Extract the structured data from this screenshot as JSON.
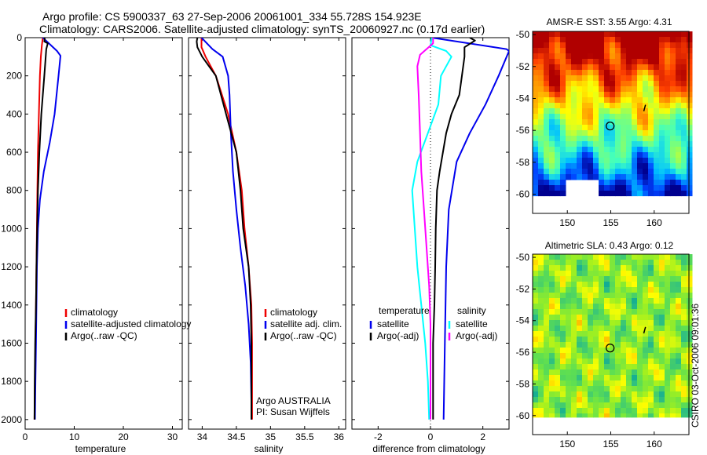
{
  "header": {
    "title_line1": "Argo profile: CS 5900337_63 27-Sep-2006 20061001_334 55.728S 154.923E",
    "title_line2": "Climatology: CARS2006. Satellite-adjusted climatology: synTS_20060927.nc (0.17d earlier)"
  },
  "credit": "CSIRO 03-Oct-2006 09:01:36",
  "chart_data": [
    {
      "id": "temperature",
      "type": "line",
      "xlabel": "temperature",
      "ylabel": "",
      "xlim": [
        0,
        32
      ],
      "ylim": [
        2050,
        0
      ],
      "y_reversed": true,
      "xticks": [
        "0",
        "10",
        "20",
        "30"
      ],
      "yticks": [
        "0",
        "200",
        "400",
        "600",
        "800",
        "1000",
        "1200",
        "1400",
        "1600",
        "1800",
        "2000"
      ],
      "legend": [
        "climatology",
        "satellite-adjusted climatology",
        "Argo(..raw -QC)"
      ],
      "legend_colors": [
        "#ee0000",
        "#0000ee",
        "#000000"
      ],
      "series": [
        {
          "name": "climatology",
          "color": "#ee0000",
          "points": [
            [
              3.6,
              0
            ],
            [
              3.4,
              40
            ],
            [
              3.2,
              100
            ],
            [
              3.0,
              200
            ],
            [
              2.8,
              400
            ],
            [
              2.6,
              600
            ],
            [
              2.5,
              800
            ],
            [
              2.4,
              1000
            ],
            [
              2.3,
              1200
            ],
            [
              2.2,
              1400
            ],
            [
              2.1,
              1600
            ],
            [
              2.0,
              1800
            ],
            [
              1.9,
              2000
            ]
          ]
        },
        {
          "name": "satellite-adjusted climatology",
          "color": "#0000ee",
          "points": [
            [
              3.6,
              0
            ],
            [
              6.5,
              70
            ],
            [
              7.2,
              95
            ],
            [
              6.8,
              200
            ],
            [
              6.0,
              400
            ],
            [
              5.0,
              550
            ],
            [
              3.8,
              700
            ],
            [
              3.0,
              850
            ],
            [
              2.6,
              1000
            ],
            [
              2.4,
              1200
            ],
            [
              2.3,
              1400
            ],
            [
              2.2,
              1600
            ],
            [
              2.1,
              1800
            ],
            [
              2.0,
              2000
            ]
          ]
        },
        {
          "name": "Argo(..raw -QC)",
          "color": "#000000",
          "points": [
            [
              4.0,
              0
            ],
            [
              3.9,
              20
            ],
            [
              4.6,
              30
            ],
            [
              4.3,
              60
            ],
            [
              3.9,
              200
            ],
            [
              3.3,
              400
            ],
            [
              2.9,
              600
            ],
            [
              2.6,
              800
            ],
            [
              2.45,
              1000
            ],
            [
              2.3,
              1200
            ],
            [
              2.2,
              1400
            ],
            [
              2.05,
              1600
            ],
            [
              1.95,
              1800
            ],
            [
              1.9,
              2000
            ]
          ]
        }
      ]
    },
    {
      "id": "salinity",
      "type": "line",
      "xlabel": "salinity",
      "ylabel": "",
      "xlim": [
        33.8,
        36.1
      ],
      "ylim": [
        2050,
        0
      ],
      "y_reversed": true,
      "xticks": [
        "34",
        "34.5",
        "35",
        "35.5",
        "36"
      ],
      "legend": [
        "climatology",
        "satellite adj. clim.",
        "Argo(..raw -QC)"
      ],
      "legend_colors": [
        "#ee0000",
        "#0000ee",
        "#000000"
      ],
      "annotation_lines": [
        "Argo AUSTRALIA",
        "PI: Susan Wijffels"
      ],
      "series": [
        {
          "name": "climatology",
          "color": "#ee0000",
          "points": [
            [
              33.99,
              0
            ],
            [
              33.99,
              50
            ],
            [
              34.05,
              100
            ],
            [
              34.2,
              200
            ],
            [
              34.38,
              400
            ],
            [
              34.5,
              600
            ],
            [
              34.58,
              800
            ],
            [
              34.62,
              1000
            ],
            [
              34.68,
              1200
            ],
            [
              34.72,
              1400
            ],
            [
              34.73,
              1600
            ],
            [
              34.73,
              1800
            ],
            [
              34.73,
              2000
            ]
          ]
        },
        {
          "name": "satellite adj. clim.",
          "color": "#0000ee",
          "points": [
            [
              33.99,
              0
            ],
            [
              34.15,
              60
            ],
            [
              34.3,
              100
            ],
            [
              34.38,
              200
            ],
            [
              34.4,
              300
            ],
            [
              34.42,
              500
            ],
            [
              34.45,
              700
            ],
            [
              34.5,
              900
            ],
            [
              34.56,
              1100
            ],
            [
              34.63,
              1300
            ],
            [
              34.68,
              1500
            ],
            [
              34.71,
              1700
            ],
            [
              34.72,
              1900
            ],
            [
              34.72,
              2000
            ]
          ]
        },
        {
          "name": "Argo(..raw -QC)",
          "color": "#000000",
          "points": [
            [
              33.93,
              0
            ],
            [
              33.92,
              20
            ],
            [
              33.93,
              50
            ],
            [
              34.0,
              100
            ],
            [
              34.2,
              200
            ],
            [
              34.35,
              400
            ],
            [
              34.5,
              600
            ],
            [
              34.56,
              800
            ],
            [
              34.6,
              1000
            ],
            [
              34.68,
              1200
            ],
            [
              34.71,
              1400
            ],
            [
              34.72,
              1600
            ],
            [
              34.72,
              1800
            ],
            [
              34.72,
              2000
            ]
          ]
        }
      ]
    },
    {
      "id": "difference",
      "type": "line",
      "xlabel": "difference from climatology",
      "ylabel": "",
      "xlim": [
        -3,
        3
      ],
      "ylim": [
        2050,
        0
      ],
      "y_reversed": true,
      "xticks": [
        "-2",
        "0",
        "2"
      ],
      "zero_line": true,
      "legend_headers": [
        "temperature",
        "salinity"
      ],
      "legend": [
        "satellite",
        "Argo(-adj)",
        "satellite",
        "Argo(-adj)"
      ],
      "legend_colors": [
        "#0000ee",
        "#000000",
        "#00ffff",
        "#ff00ff"
      ],
      "series": [
        {
          "name": "temperature satellite",
          "color": "#0000ee",
          "points": [
            [
              0.05,
              0
            ],
            [
              2.9,
              60
            ],
            [
              3.0,
              70
            ],
            [
              2.6,
              200
            ],
            [
              2.1,
              350
            ],
            [
              1.5,
              500
            ],
            [
              1.0,
              650
            ],
            [
              0.7,
              900
            ],
            [
              0.6,
              1200
            ],
            [
              0.55,
              1600
            ],
            [
              0.5,
              2000
            ]
          ]
        },
        {
          "name": "temperature Argo(-adj)",
          "color": "#000000",
          "points": [
            [
              1.5,
              0
            ],
            [
              1.7,
              15
            ],
            [
              1.3,
              50
            ],
            [
              1.3,
              100
            ],
            [
              1.2,
              200
            ],
            [
              1.1,
              300
            ],
            [
              0.8,
              400
            ],
            [
              0.6,
              500
            ],
            [
              0.35,
              700
            ],
            [
              0.25,
              800
            ],
            [
              0.2,
              1000
            ],
            [
              0.18,
              1200
            ],
            [
              0.15,
              1400
            ],
            [
              0.1,
              1600
            ],
            [
              0.1,
              2000
            ]
          ]
        },
        {
          "name": "salinity satellite",
          "color": "#00ffff",
          "points": [
            [
              0.05,
              0
            ],
            [
              0.0,
              40
            ],
            [
              0.6,
              70
            ],
            [
              0.8,
              100
            ],
            [
              0.4,
              200
            ],
            [
              0.3,
              350
            ],
            [
              -0.1,
              500
            ],
            [
              -0.5,
              650
            ],
            [
              -0.7,
              800
            ],
            [
              -0.6,
              1000
            ],
            [
              -0.5,
              1200
            ],
            [
              -0.35,
              1400
            ],
            [
              -0.2,
              1600
            ],
            [
              -0.1,
              1800
            ],
            [
              -0.05,
              2000
            ]
          ]
        },
        {
          "name": "salinity Argo(-adj)",
          "color": "#ff00ff",
          "points": [
            [
              0.1,
              0
            ],
            [
              0.1,
              30
            ],
            [
              -0.4,
              90
            ],
            [
              -0.5,
              150
            ],
            [
              -0.45,
              300
            ],
            [
              -0.4,
              500
            ],
            [
              -0.35,
              700
            ],
            [
              -0.25,
              900
            ],
            [
              -0.15,
              1100
            ],
            [
              -0.05,
              1300
            ],
            [
              0.0,
              1500
            ],
            [
              0.0,
              2000
            ]
          ]
        }
      ]
    },
    {
      "id": "sst-map",
      "type": "heatmap",
      "title": "AMSR-E SST: 3.55 Argo: 4.31",
      "xlim": [
        146,
        164
      ],
      "ylim": [
        -61.2,
        -49.8
      ],
      "xticks": [
        "150",
        "155",
        "160"
      ],
      "yticks": [
        "-50",
        "-52",
        "-54",
        "-56",
        "-58",
        "-60"
      ],
      "marker": {
        "lon": 154.923,
        "lat": -55.728
      },
      "trace": {
        "lon": [
          158.8,
          159.0
        ],
        "lat": [
          -54.8,
          -54.4
        ]
      },
      "colors": [
        "#00008f",
        "#0040ff",
        "#00c0ff",
        "#40ffbf",
        "#90ff60",
        "#ffff00",
        "#ffa000",
        "#ff4000",
        "#b00000"
      ]
    },
    {
      "id": "sla-map",
      "type": "heatmap",
      "title": "Altimetric SLA: 0.43 Argo: 0.12",
      "xlim": [
        146,
        164
      ],
      "ylim": [
        -61.2,
        -49.8
      ],
      "xticks": [
        "150",
        "155",
        "160"
      ],
      "yticks": [
        "-50",
        "-52",
        "-54",
        "-56",
        "-58",
        "-60"
      ],
      "marker": {
        "lon": 154.923,
        "lat": -55.728
      },
      "trace": {
        "lon": [
          158.8,
          159.0
        ],
        "lat": [
          -54.8,
          -54.4
        ]
      },
      "colors": [
        "#00a0a0",
        "#30c080",
        "#60e050",
        "#a0f020",
        "#ffff00",
        "#ffc000",
        "#ff7000"
      ]
    }
  ]
}
